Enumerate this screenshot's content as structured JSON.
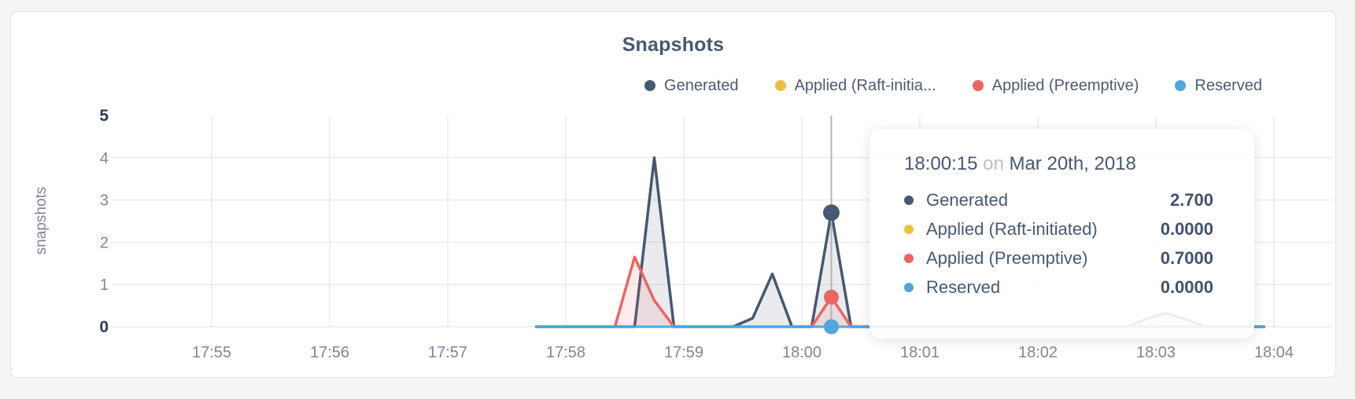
{
  "panel": {
    "title": "Snapshots"
  },
  "colors": {
    "page_bg": "#f5f5f5",
    "panel_bg": "#ffffff",
    "panel_border": "#e4e4e4",
    "title": "#475872",
    "grid": "#ececec",
    "baseline": "#e2e2e2",
    "axis_label": "#7d8799",
    "axis_label_strong": "#2b3a55",
    "crosshair": "#b5b5b5",
    "generated": "#475872",
    "raft": "#efbf3c",
    "preemptive": "#ed6464",
    "reserved": "#4fa7dd"
  },
  "legend": [
    {
      "label": "Generated",
      "color": "#475872"
    },
    {
      "label": "Applied (Raft-initia...",
      "color": "#efbf3c"
    },
    {
      "label": "Applied (Preemptive)",
      "color": "#ed6464"
    },
    {
      "label": "Reserved",
      "color": "#4fa7dd"
    }
  ],
  "tooltip": {
    "time": "18:00:15",
    "conjunction": "on",
    "date": "Mar 20th, 2018",
    "rows": [
      {
        "label": "Generated",
        "value": "2.700",
        "color": "#475872"
      },
      {
        "label": "Applied (Raft-initiated)",
        "value": "0.0000",
        "color": "#efbf3c"
      },
      {
        "label": "Applied (Preemptive)",
        "value": "0.7000",
        "color": "#ed6464"
      },
      {
        "label": "Reserved",
        "value": "0.0000",
        "color": "#4fa7dd"
      }
    ]
  },
  "chart_data": {
    "type": "area",
    "title": "Snapshots",
    "xlabel": "",
    "ylabel": "snapshots",
    "ylim": [
      0,
      5
    ],
    "y_ticks": [
      0,
      1,
      2,
      3,
      4,
      5
    ],
    "y_ticks_strong": [
      0,
      5
    ],
    "x_ticks": [
      {
        "time": "17:55:00",
        "label": "17:55"
      },
      {
        "time": "17:56:00",
        "label": "17:56"
      },
      {
        "time": "17:57:00",
        "label": "17:57"
      },
      {
        "time": "17:58:00",
        "label": "17:58"
      },
      {
        "time": "17:59:00",
        "label": "17:59"
      },
      {
        "time": "18:00:00",
        "label": "18:00"
      },
      {
        "time": "18:01:00",
        "label": "18:01"
      },
      {
        "time": "18:02:00",
        "label": "18:02"
      },
      {
        "time": "18:03:00",
        "label": "18:03"
      },
      {
        "time": "18:04:00",
        "label": "18:04"
      }
    ],
    "grid": true,
    "legend_position": "top-right",
    "series": [
      {
        "name": "Generated",
        "color": "#475872",
        "fill": "rgba(71,88,114,0.12)",
        "width": 3.5,
        "points": [
          [
            "17:57:45",
            0
          ],
          [
            "17:58:35",
            0
          ],
          [
            "17:58:45",
            4.0
          ],
          [
            "17:58:55",
            0
          ],
          [
            "17:59:25",
            0
          ],
          [
            "17:59:35",
            0.2
          ],
          [
            "17:59:45",
            1.25
          ],
          [
            "17:59:55",
            0
          ],
          [
            "18:00:05",
            0
          ],
          [
            "18:00:15",
            2.7
          ],
          [
            "18:00:25",
            0
          ],
          [
            "18:02:45",
            0
          ],
          [
            "18:02:55",
            0.18
          ],
          [
            "18:03:05",
            0.32
          ],
          [
            "18:03:15",
            0.18
          ],
          [
            "18:03:25",
            0
          ],
          [
            "18:03:55",
            0
          ]
        ]
      },
      {
        "name": "Applied (Raft-initiated)",
        "color": "#efbf3c",
        "fill": "rgba(239,191,60,0.12)",
        "width": 3,
        "points": [
          [
            "17:57:45",
            0
          ],
          [
            "18:03:55",
            0
          ]
        ]
      },
      {
        "name": "Applied (Preemptive)",
        "color": "#ed6464",
        "fill": "rgba(237,100,100,0.12)",
        "width": 3.5,
        "points": [
          [
            "17:57:45",
            0
          ],
          [
            "17:58:25",
            0
          ],
          [
            "17:58:35",
            1.65
          ],
          [
            "17:58:45",
            0.62
          ],
          [
            "17:58:55",
            0
          ],
          [
            "18:00:05",
            0
          ],
          [
            "18:00:15",
            0.7
          ],
          [
            "18:00:25",
            0
          ],
          [
            "18:03:55",
            0
          ]
        ]
      },
      {
        "name": "Reserved",
        "color": "#4fa7dd",
        "fill": "rgba(79,167,221,0.12)",
        "width": 3,
        "points": [
          [
            "17:57:45",
            0
          ],
          [
            "18:03:55",
            0
          ]
        ]
      }
    ],
    "highlight": {
      "time": "18:00:15",
      "points": [
        {
          "series": "Generated",
          "value": 2.7
        },
        {
          "series": "Applied (Raft-initiated)",
          "value": 0
        },
        {
          "series": "Applied (Preemptive)",
          "value": 0.7
        },
        {
          "series": "Reserved",
          "value": 0
        }
      ]
    }
  }
}
